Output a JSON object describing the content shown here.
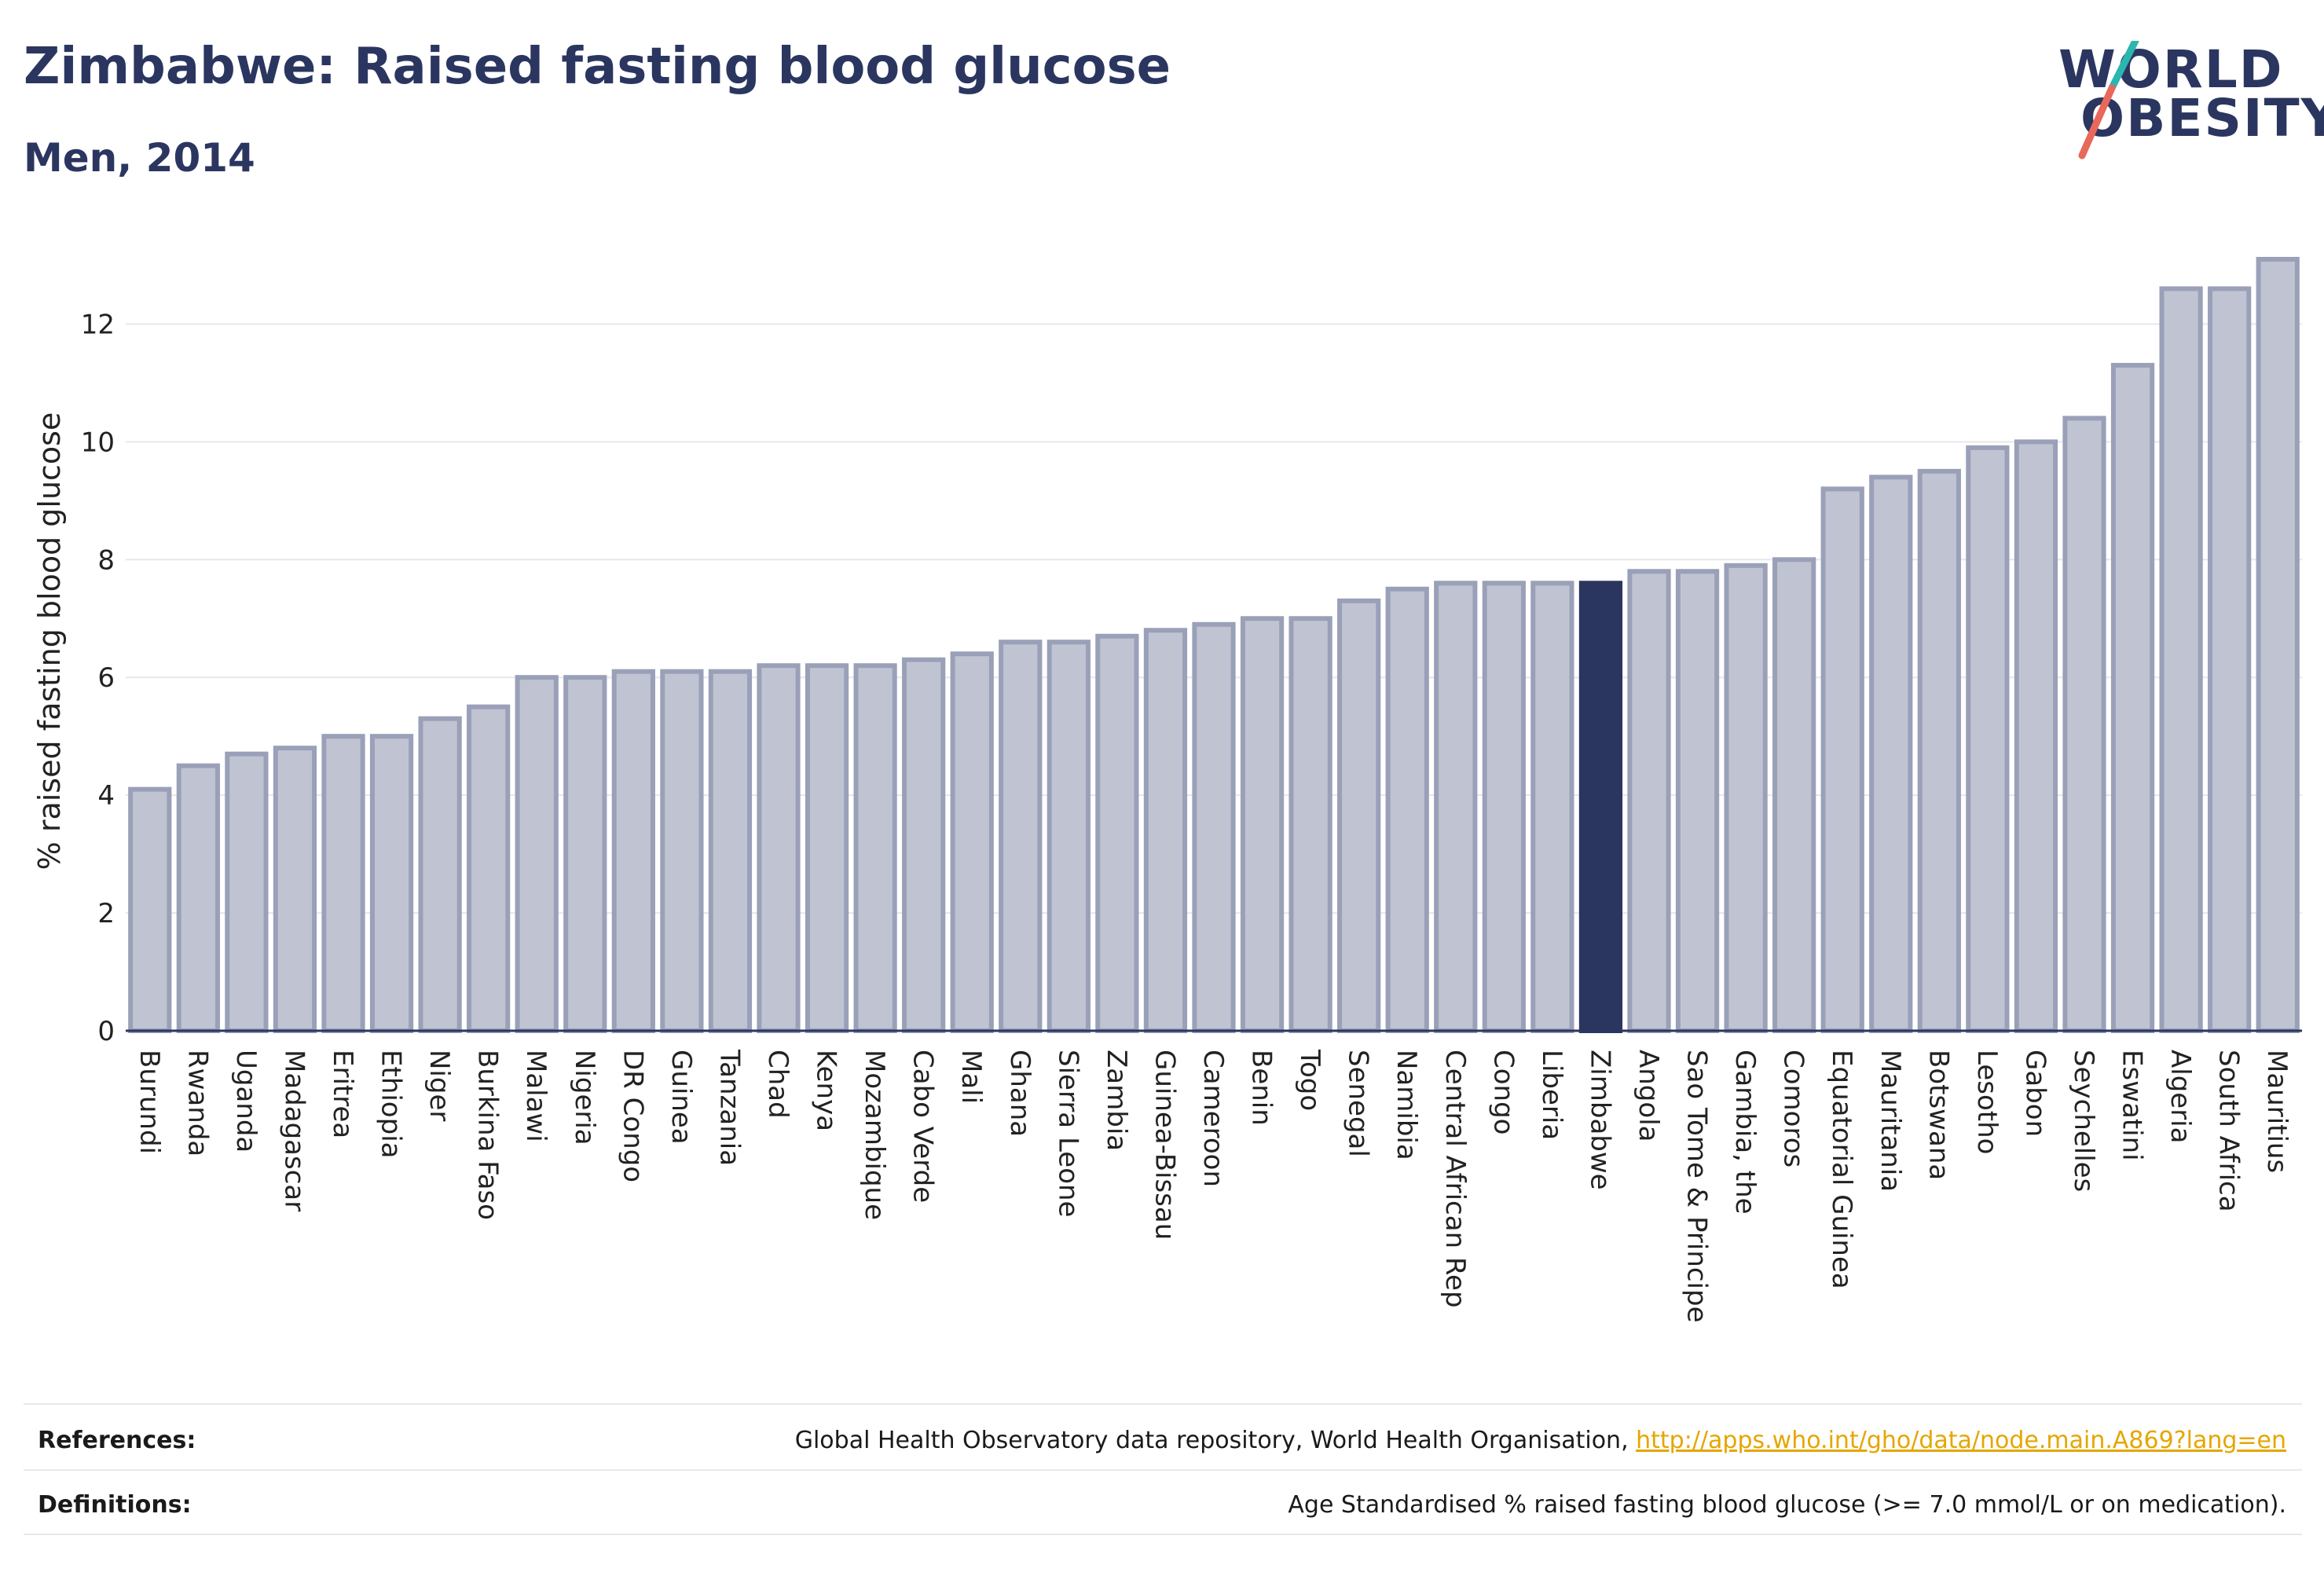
{
  "header": {
    "title": "Zimbabwe: Raised fasting blood glucose",
    "subtitle": "Men, 2014"
  },
  "logo": {
    "line1": "WORLD",
    "line2": "OBESITY",
    "slash_color_top": "#2bb6b0",
    "slash_color_bottom": "#e8685a"
  },
  "colors": {
    "bar_fill": "#c0c4d2",
    "bar_stroke": "#9aa0b8",
    "highlight": "#2b3660",
    "text_dark": "#2b3660"
  },
  "chart_data": {
    "type": "bar",
    "title": "Zimbabwe: Raised fasting blood glucose",
    "subtitle": "Men, 2014",
    "ylabel": "% raised fasting blood glucose",
    "xlabel": "",
    "ylim": [
      0,
      13.5
    ],
    "yticks": [
      0,
      2,
      4,
      6,
      8,
      10,
      12
    ],
    "grid": true,
    "highlight_category": "Zimbabwe",
    "categories": [
      "Burundi",
      "Rwanda",
      "Uganda",
      "Madagascar",
      "Eritrea",
      "Ethiopia",
      "Niger",
      "Burkina Faso",
      "Malawi",
      "Nigeria",
      "DR Congo",
      "Guinea",
      "Tanzania",
      "Chad",
      "Kenya",
      "Mozambique",
      "Cabo Verde",
      "Mali",
      "Ghana",
      "Sierra Leone",
      "Zambia",
      "Guinea-Bissau",
      "Cameroon",
      "Benin",
      "Togo",
      "Senegal",
      "Namibia",
      "Central African Rep",
      "Congo",
      "Liberia",
      "Zimbabwe",
      "Angola",
      "Sao Tome & Principe",
      "Gambia, the",
      "Comoros",
      "Equatorial Guinea",
      "Mauritania",
      "Botswana",
      "Lesotho",
      "Gabon",
      "Seychelles",
      "Eswatini",
      "Algeria",
      "South Africa",
      "Mauritius"
    ],
    "values": [
      4.1,
      4.5,
      4.7,
      4.8,
      5.0,
      5.0,
      5.3,
      5.5,
      6.0,
      6.0,
      6.1,
      6.1,
      6.1,
      6.2,
      6.2,
      6.2,
      6.3,
      6.4,
      6.6,
      6.6,
      6.7,
      6.8,
      6.9,
      7.0,
      7.0,
      7.3,
      7.5,
      7.6,
      7.6,
      7.6,
      7.6,
      7.8,
      7.8,
      7.9,
      8.0,
      9.2,
      9.4,
      9.5,
      9.9,
      10.0,
      10.4,
      11.3,
      12.6,
      12.6,
      13.1
    ]
  },
  "footer": {
    "references_label": "References:",
    "references_text": "Global Health Observatory data repository, World Health Organisation, ",
    "references_link": "http://apps.who.int/gho/data/node.main.A869?lang=en",
    "definitions_label": "Definitions:",
    "definitions_text": "Age Standardised % raised fasting blood glucose (>= 7.0 mmol/L or on medication)."
  }
}
